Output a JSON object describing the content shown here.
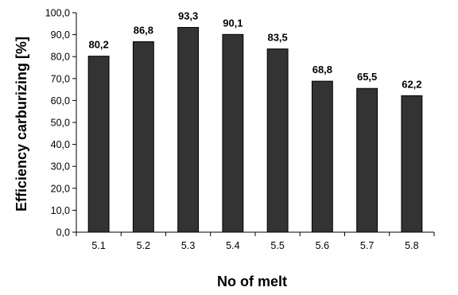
{
  "chart_data": {
    "type": "bar",
    "title": "",
    "xlabel": "No of melt",
    "ylabel": "Efficiency carburizing [%]",
    "categories": [
      "5.1",
      "5.2",
      "5.3",
      "5.4",
      "5.5",
      "5.6",
      "5.7",
      "5.8"
    ],
    "values": [
      80.2,
      86.8,
      93.3,
      90.1,
      83.5,
      68.8,
      65.5,
      62.2
    ],
    "value_labels": [
      "80,2",
      "86,8",
      "93,3",
      "90,1",
      "83,5",
      "68,8",
      "65,5",
      "62,2"
    ],
    "ylim": [
      0,
      100
    ],
    "y_ticks": [
      0,
      10,
      20,
      30,
      40,
      50,
      60,
      70,
      80,
      90,
      100
    ],
    "y_tick_labels": [
      "0,0",
      "10,0",
      "20,0",
      "30,0",
      "40,0",
      "50,0",
      "60,0",
      "70,0",
      "80,0",
      "90,0",
      "100,0"
    ],
    "grid": false,
    "legend": "none",
    "bar_color": "#333333"
  }
}
